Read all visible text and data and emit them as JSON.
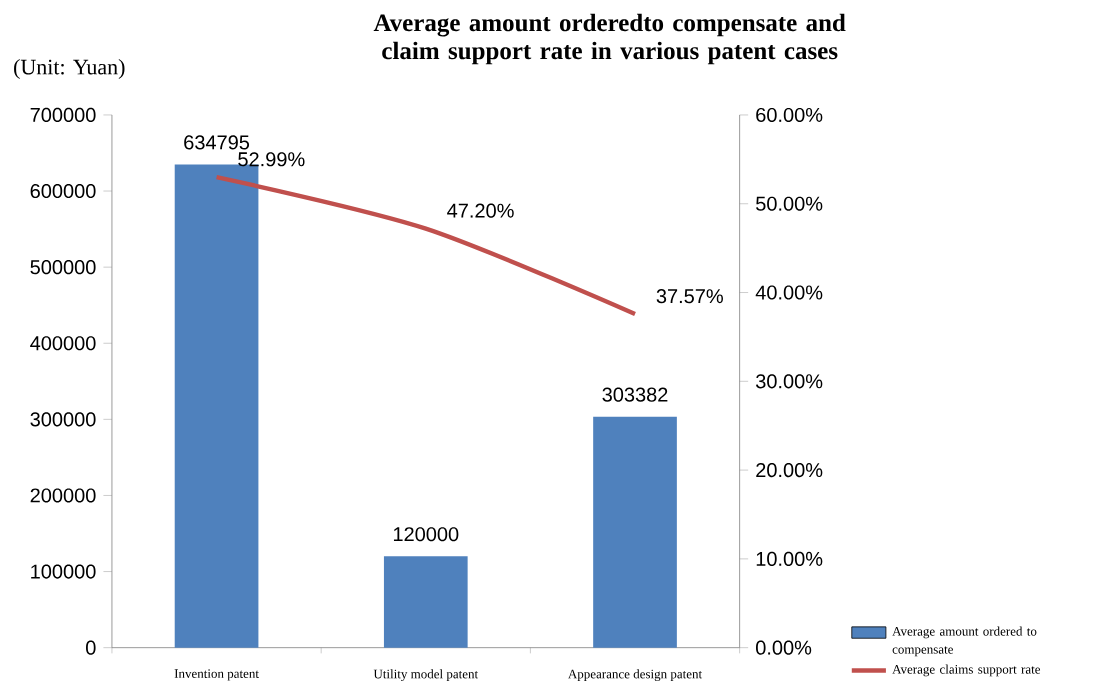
{
  "chart_data": {
    "type": "bar",
    "title": "Average amount orderedto compensate and claim support rate in various patent cases",
    "annotations": [
      "(Unit: Yuan)"
    ],
    "categories": [
      "Invention patent",
      "Utility model patent",
      "Appearance design patent"
    ],
    "series": [
      {
        "name": "Average amount ordered to compensate",
        "color": "#4f81bd",
        "values": [
          634795,
          120000,
          303382
        ],
        "value_labels": [
          "634795",
          "120000",
          "303382"
        ]
      },
      {
        "name": "Average claims support rate",
        "type": "line",
        "axis": "y2",
        "color": "#c0504d",
        "values": [
          52.99,
          47.2,
          37.57
        ],
        "value_labels": [
          "52.99%",
          "47.20%",
          "37.57%"
        ]
      }
    ],
    "ylim": [
      0,
      700000
    ],
    "yticks": [
      0,
      100000,
      200000,
      300000,
      400000,
      500000,
      600000,
      700000
    ],
    "y2lim": [
      0,
      60
    ],
    "y2ticks": [
      {
        "value": 0,
        "label": "0.00%"
      },
      {
        "value": 10,
        "label": "10.00%"
      },
      {
        "value": 20,
        "label": "20.00%"
      },
      {
        "value": 30,
        "label": "30.00%"
      },
      {
        "value": 40,
        "label": "40.00%"
      },
      {
        "value": 50,
        "label": "50.00%"
      },
      {
        "value": 60,
        "label": "60.00%"
      }
    ],
    "legend": "right"
  }
}
